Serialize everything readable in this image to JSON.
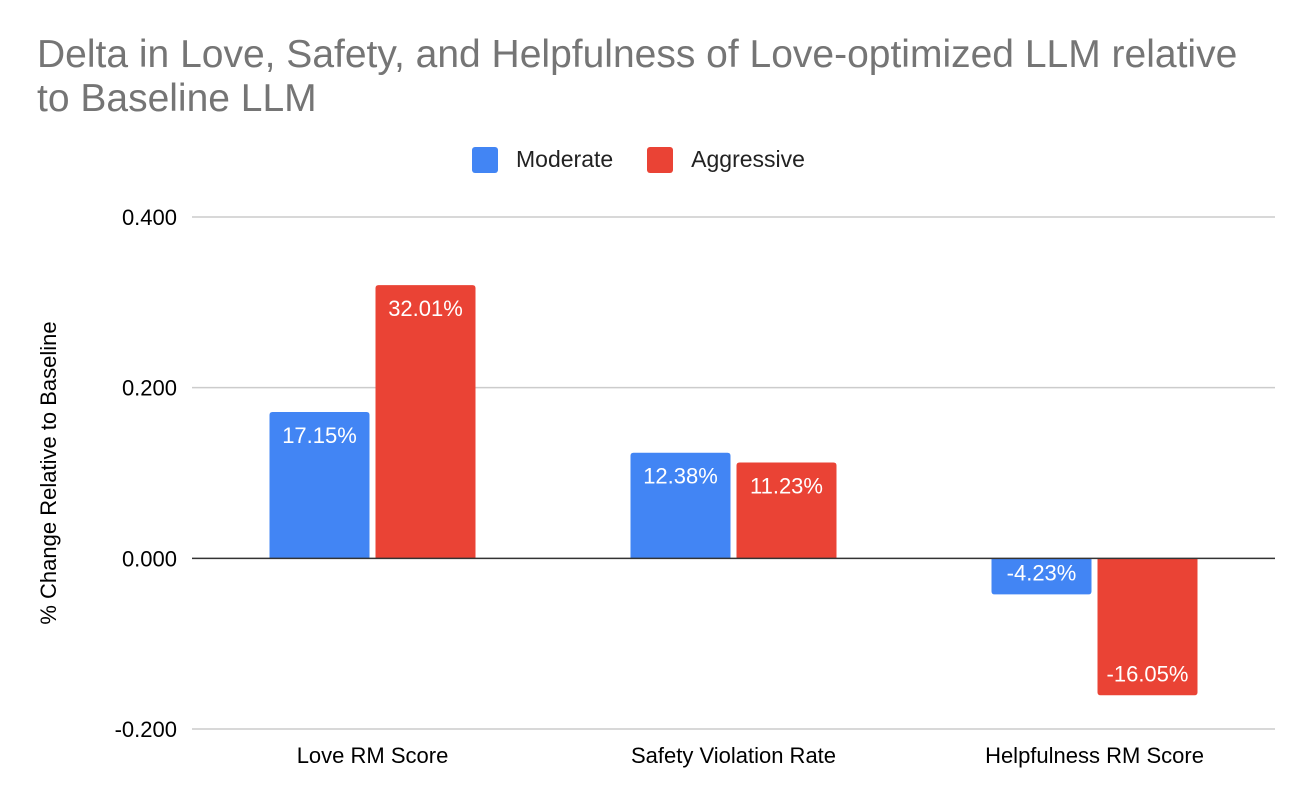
{
  "chart_data": {
    "type": "bar",
    "title": "Delta in Love, Safety, and Helpfulness of Love-optimized LLM relative to Baseline LLM",
    "xlabel": "",
    "ylabel": "% Change Relative to Baseline",
    "categories": [
      "Love RM Score",
      "Safety Violation Rate",
      "Helpfulness RM Score"
    ],
    "series": [
      {
        "name": "Moderate",
        "color": "#4285f4",
        "values": [
          0.1715,
          0.1238,
          -0.0423
        ],
        "labels": [
          "17.15%",
          "12.38%",
          "-4.23%"
        ]
      },
      {
        "name": "Aggressive",
        "color": "#ea4335",
        "values": [
          0.3201,
          0.1123,
          -0.1605
        ],
        "labels": [
          "32.01%",
          "11.23%",
          "-16.05%"
        ]
      }
    ],
    "ylim": [
      -0.2,
      0.4
    ],
    "yticks": [
      {
        "value": 0.4,
        "label": "0.400"
      },
      {
        "value": 0.2,
        "label": "0.200"
      },
      {
        "value": 0.0,
        "label": "0.000"
      },
      {
        "value": -0.2,
        "label": "-0.200"
      }
    ],
    "grid": true,
    "legend_position": "top-center"
  }
}
